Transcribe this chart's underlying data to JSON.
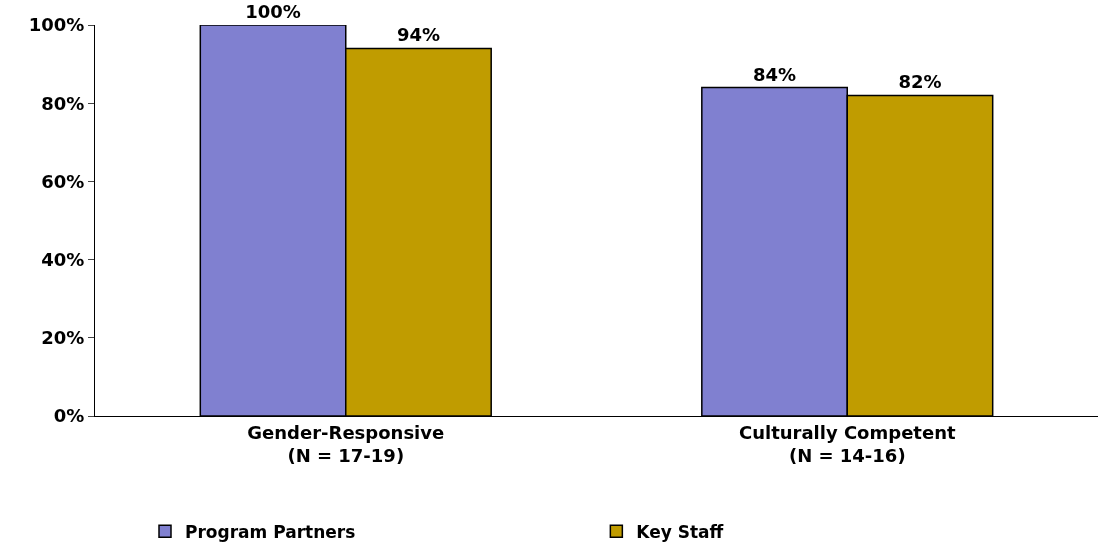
{
  "chart_data": {
    "type": "bar",
    "categories": [
      "Gender-Responsive\n(N = 17-19)",
      "Culturally Competent\n(N = 14-16)"
    ],
    "series": [
      {
        "name": "Program Partners",
        "color": "#8080d0",
        "values": [
          100,
          84
        ],
        "value_labels": [
          "100%",
          "84%"
        ]
      },
      {
        "name": "Key Staff",
        "color": "#c09c00",
        "values": [
          94,
          82
        ],
        "value_labels": [
          "94%",
          "82%"
        ]
      }
    ],
    "ylim": [
      0,
      100
    ],
    "yticks": [
      {
        "value": 0,
        "label": "0%"
      },
      {
        "value": 20,
        "label": "20%"
      },
      {
        "value": 40,
        "label": "40%"
      },
      {
        "value": 60,
        "label": "60%"
      },
      {
        "value": 80,
        "label": "80%"
      },
      {
        "value": 100,
        "label": "100%"
      }
    ],
    "legend": "bottom"
  }
}
